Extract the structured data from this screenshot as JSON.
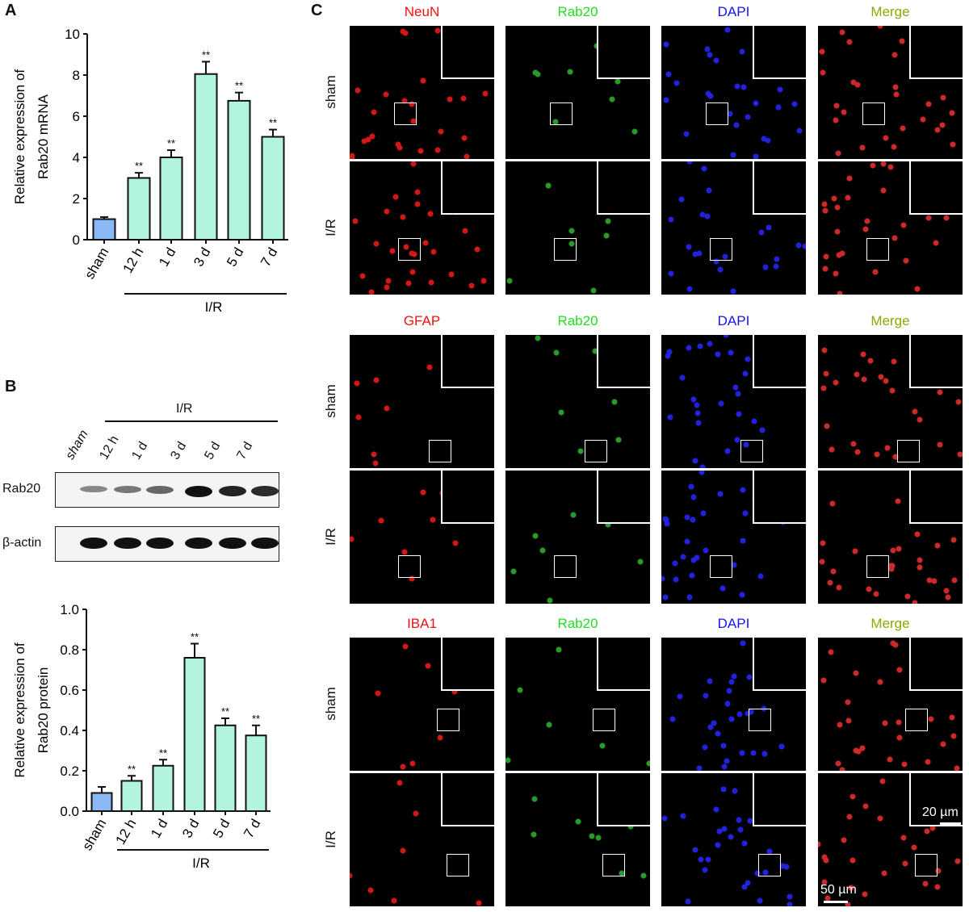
{
  "panels": {
    "a": "A",
    "b": "B",
    "c": "C"
  },
  "chart_data": [
    {
      "type": "bar",
      "categories": [
        "sham",
        "12 h",
        "1 d",
        "3 d",
        "5 d",
        "7 d"
      ],
      "values": [
        1.0,
        3.0,
        4.0,
        8.05,
        6.75,
        5.0
      ],
      "errors": [
        0.1,
        0.25,
        0.35,
        0.6,
        0.4,
        0.35
      ],
      "significance": [
        "",
        "**",
        "**",
        "**",
        "**",
        "**"
      ],
      "ylabel": [
        "Relative expression of",
        "Rab20 mRNA"
      ],
      "yticks": [
        "0",
        "2",
        "4",
        "6",
        "8",
        "10"
      ],
      "ylim": [
        0,
        10
      ],
      "group_label": "I/R",
      "colors": {
        "sham": "#8ab8f5",
        "ir": "#b3f5dc"
      }
    },
    {
      "type": "bar",
      "categories": [
        "sham",
        "12 h",
        "1 d",
        "3 d",
        "5 d",
        "7 d"
      ],
      "values": [
        0.09,
        0.15,
        0.225,
        0.76,
        0.425,
        0.375
      ],
      "errors": [
        0.03,
        0.025,
        0.03,
        0.07,
        0.035,
        0.05
      ],
      "significance": [
        "",
        "**",
        "**",
        "**",
        "**",
        "**"
      ],
      "ylabel": [
        "Relative expression of",
        "Rab20 protein"
      ],
      "yticks": [
        "0.0",
        "0.2",
        "0.4",
        "0.6",
        "0.8",
        "1.0"
      ],
      "ylim": [
        0,
        1.0
      ],
      "group_label": "I/R",
      "colors": {
        "sham": "#8ab8f5",
        "ir": "#b3f5dc"
      }
    }
  ],
  "blot": {
    "group_label": "I/R",
    "lanes": [
      "sham",
      "12 h",
      "1 d",
      "3 d",
      "5 d",
      "7 d"
    ],
    "rows": [
      {
        "label": "Rab20",
        "intensity": [
          0.3,
          0.4,
          0.5,
          1.0,
          0.9,
          0.85
        ]
      },
      {
        "label": "β-actin",
        "intensity": [
          1,
          1,
          1,
          1,
          1,
          1
        ]
      }
    ]
  },
  "micrographs": {
    "rows": [
      "sham",
      "I/R"
    ],
    "blocks": [
      {
        "channels": [
          "NeuN",
          "Rab20",
          "DAPI",
          "Merge"
        ]
      },
      {
        "channels": [
          "GFAP",
          "Rab20",
          "DAPI",
          "Merge"
        ]
      },
      {
        "channels": [
          "IBA1",
          "Rab20",
          "DAPI",
          "Merge"
        ]
      }
    ],
    "channel_colors": [
      "#ee1111",
      "#22dd22",
      "#1414ee",
      "#88aa00"
    ],
    "scale_bar_large": "50 µm",
    "scale_bar_inset": "20 µm"
  }
}
